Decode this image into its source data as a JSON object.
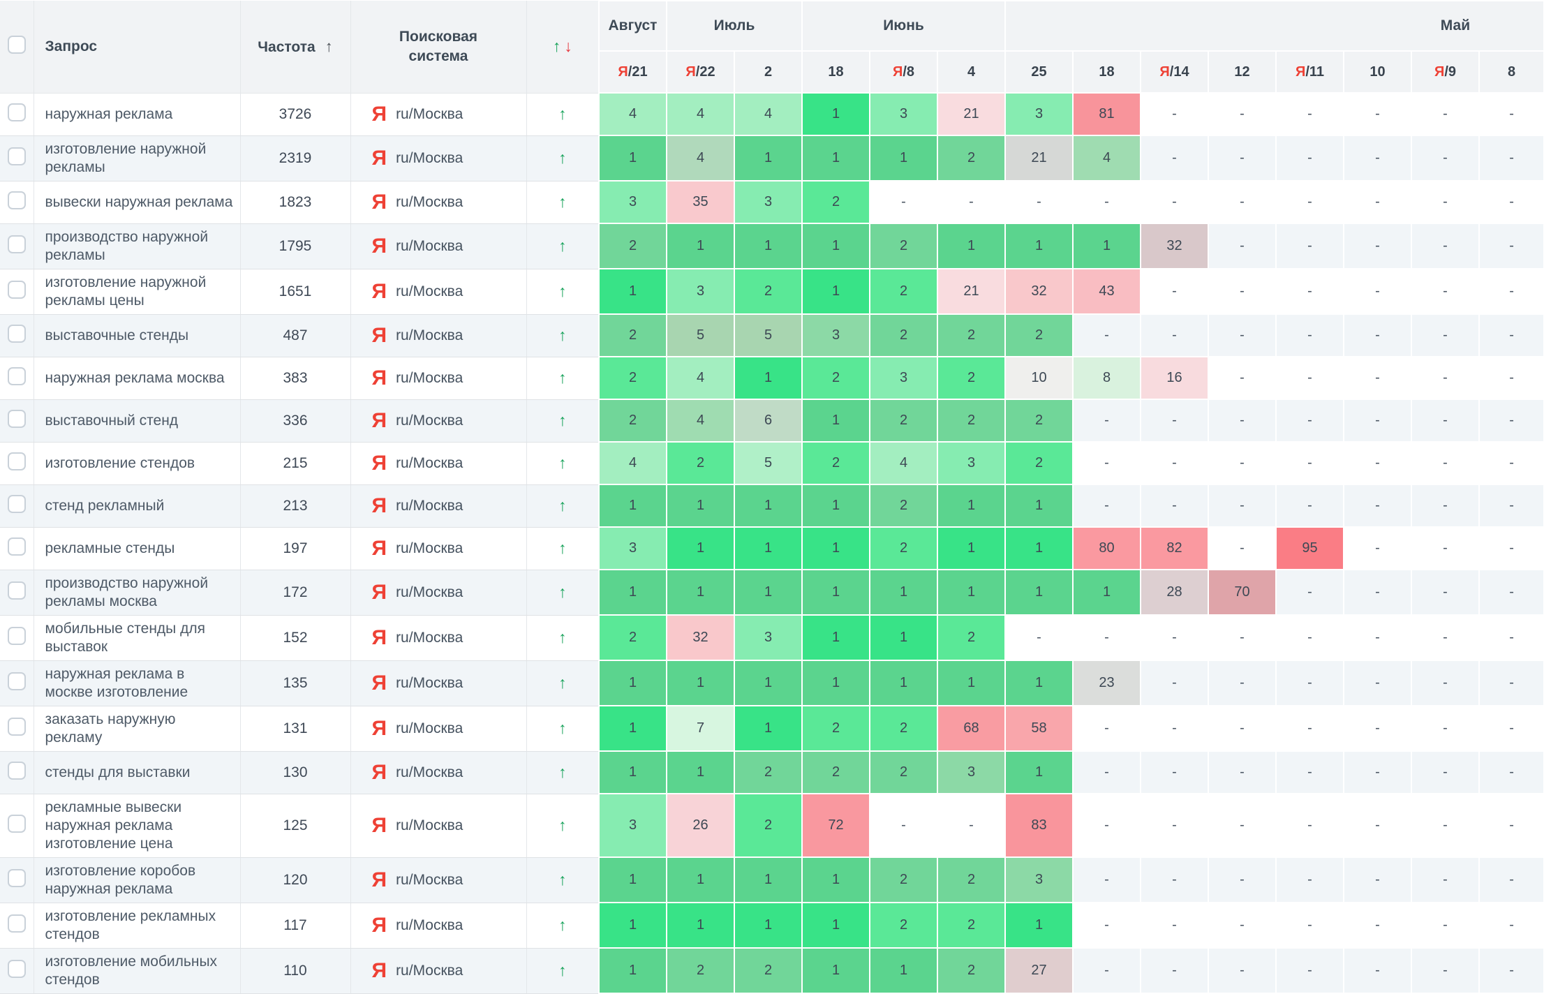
{
  "colors": {
    "yandex_red": "#ee4135",
    "trend_up_green": "#17a25a",
    "sort_down_red": "#e6393f",
    "header_bg": "#f1f3f5",
    "row_alt_bg": "#f1f5f8"
  },
  "palette": {
    "g1b": "#38e387",
    "g1m": "#5bd48e",
    "g2b": "#5ae897",
    "g2m": "#71d699",
    "g3b": "#86ecb1",
    "g3m": "#8cd9a6",
    "g4b": "#a3eec0",
    "g4m": "#9fdcb1",
    "g4g": "#b0d9bb",
    "g5b": "#b0f0c8",
    "g5m": "#a8d5b0",
    "g6m": "#c0dbc6",
    "g7b": "#d7f6e0",
    "g8b": "#d9f2de",
    "g10": "#efefed",
    "gy21": "#d6d8d6",
    "gy23": "#dbdddb",
    "gy27": "#e0cdce",
    "gy28": "#ddcfd1",
    "gy32": "#d9c8ca",
    "p16": "#f8dbde",
    "p21": "#f9dcdf",
    "p26": "#f8d3d7",
    "p32": "#f9c8cb",
    "p35": "#f9c9cd",
    "p43": "#f9bdc2",
    "r58": "#f9a6ab",
    "r68": "#f99ca2",
    "r70": "#dfa4a9",
    "r72": "#f9989f",
    "r80": "#fa99a0",
    "r81": "#f8949b",
    "r82": "#fa99a0",
    "r83": "#f9959c",
    "r95": "#fa7d85"
  },
  "header": {
    "query": "Запрос",
    "frequency": "Частота",
    "freq_sort_icon": "↑",
    "search_engine": "Поисковая\nсистема",
    "up_icon": "↑",
    "down_icon": "↓",
    "months": [
      {
        "label": "Август",
        "span": 1
      },
      {
        "label": "Июль",
        "span": 2
      },
      {
        "label": "Июнь",
        "span": 3
      },
      {
        "label": "Май",
        "span": 8
      }
    ],
    "dates": [
      {
        "ya": true,
        "day": "21"
      },
      {
        "ya": true,
        "day": "22"
      },
      {
        "ya": false,
        "day": "2"
      },
      {
        "ya": false,
        "day": "18"
      },
      {
        "ya": true,
        "day": "8"
      },
      {
        "ya": false,
        "day": "4"
      },
      {
        "ya": false,
        "day": "25"
      },
      {
        "ya": false,
        "day": "18"
      },
      {
        "ya": true,
        "day": "14"
      },
      {
        "ya": false,
        "day": "12"
      },
      {
        "ya": true,
        "day": "11"
      },
      {
        "ya": false,
        "day": "10"
      },
      {
        "ya": true,
        "day": "9"
      },
      {
        "ya": false,
        "day": "8"
      }
    ]
  },
  "engine": {
    "icon": "Я",
    "label": "ru/Москва"
  },
  "row_trend_icon": "↑",
  "rows": [
    {
      "query": "наружная реклама",
      "frequency": "3726",
      "cells": [
        [
          "4",
          "g4b"
        ],
        [
          "4",
          "g4b"
        ],
        [
          "4",
          "g4b"
        ],
        [
          "1",
          "g1b"
        ],
        [
          "3",
          "g3b"
        ],
        [
          "21",
          "p21"
        ],
        [
          "3",
          "g3b"
        ],
        [
          "81",
          "r81"
        ],
        [
          "-",
          ""
        ],
        [
          "-",
          ""
        ],
        [
          "-",
          ""
        ],
        [
          "-",
          ""
        ],
        [
          "-",
          ""
        ],
        [
          "-",
          ""
        ]
      ]
    },
    {
      "query": "изготовление наружной рекламы",
      "frequency": "2319",
      "cells": [
        [
          "1",
          "g1m"
        ],
        [
          "4",
          "g4g"
        ],
        [
          "1",
          "g1m"
        ],
        [
          "1",
          "g1m"
        ],
        [
          "1",
          "g1m"
        ],
        [
          "2",
          "g2m"
        ],
        [
          "21",
          "gy21"
        ],
        [
          "4",
          "g4m"
        ],
        [
          "-",
          ""
        ],
        [
          "-",
          ""
        ],
        [
          "-",
          ""
        ],
        [
          "-",
          ""
        ],
        [
          "-",
          ""
        ],
        [
          "-",
          ""
        ]
      ]
    },
    {
      "query": "вывески наружная реклама",
      "frequency": "1823",
      "cells": [
        [
          "3",
          "g3b"
        ],
        [
          "35",
          "p35"
        ],
        [
          "3",
          "g3b"
        ],
        [
          "2",
          "g2b"
        ],
        [
          "-",
          ""
        ],
        [
          "-",
          ""
        ],
        [
          "-",
          ""
        ],
        [
          "-",
          ""
        ],
        [
          "-",
          ""
        ],
        [
          "-",
          ""
        ],
        [
          "-",
          ""
        ],
        [
          "-",
          ""
        ],
        [
          "-",
          ""
        ],
        [
          "-",
          ""
        ]
      ]
    },
    {
      "query": "производство наружной рекламы",
      "frequency": "1795",
      "cells": [
        [
          "2",
          "g2m"
        ],
        [
          "1",
          "g1m"
        ],
        [
          "1",
          "g1m"
        ],
        [
          "1",
          "g1m"
        ],
        [
          "2",
          "g2m"
        ],
        [
          "1",
          "g1m"
        ],
        [
          "1",
          "g1m"
        ],
        [
          "1",
          "g1m"
        ],
        [
          "32",
          "gy32"
        ],
        [
          "-",
          ""
        ],
        [
          "-",
          ""
        ],
        [
          "-",
          ""
        ],
        [
          "-",
          ""
        ],
        [
          "-",
          ""
        ]
      ]
    },
    {
      "query": "изготовление наружной рекламы цены",
      "frequency": "1651",
      "cells": [
        [
          "1",
          "g1b"
        ],
        [
          "3",
          "g3b"
        ],
        [
          "2",
          "g2b"
        ],
        [
          "1",
          "g1b"
        ],
        [
          "2",
          "g2b"
        ],
        [
          "21",
          "p21"
        ],
        [
          "32",
          "p32"
        ],
        [
          "43",
          "p43"
        ],
        [
          "-",
          ""
        ],
        [
          "-",
          ""
        ],
        [
          "-",
          ""
        ],
        [
          "-",
          ""
        ],
        [
          "-",
          ""
        ],
        [
          "-",
          ""
        ]
      ]
    },
    {
      "query": "выставочные стенды",
      "frequency": "487",
      "cells": [
        [
          "2",
          "g2m"
        ],
        [
          "5",
          "g5m"
        ],
        [
          "5",
          "g5m"
        ],
        [
          "3",
          "g3m"
        ],
        [
          "2",
          "g2m"
        ],
        [
          "2",
          "g2m"
        ],
        [
          "2",
          "g2m"
        ],
        [
          "-",
          ""
        ],
        [
          "-",
          ""
        ],
        [
          "-",
          ""
        ],
        [
          "-",
          ""
        ],
        [
          "-",
          ""
        ],
        [
          "-",
          ""
        ],
        [
          "-",
          ""
        ]
      ]
    },
    {
      "query": "наружная реклама москва",
      "frequency": "383",
      "cells": [
        [
          "2",
          "g2b"
        ],
        [
          "4",
          "g4b"
        ],
        [
          "1",
          "g1b"
        ],
        [
          "2",
          "g2b"
        ],
        [
          "3",
          "g3b"
        ],
        [
          "2",
          "g2b"
        ],
        [
          "10",
          "g10"
        ],
        [
          "8",
          "g8b"
        ],
        [
          "16",
          "p16"
        ],
        [
          "-",
          ""
        ],
        [
          "-",
          ""
        ],
        [
          "-",
          ""
        ],
        [
          "-",
          ""
        ],
        [
          "-",
          ""
        ]
      ]
    },
    {
      "query": "выставочный стенд",
      "frequency": "336",
      "cells": [
        [
          "2",
          "g2m"
        ],
        [
          "4",
          "g4m"
        ],
        [
          "6",
          "g6m"
        ],
        [
          "1",
          "g1m"
        ],
        [
          "2",
          "g2m"
        ],
        [
          "2",
          "g2m"
        ],
        [
          "2",
          "g2m"
        ],
        [
          "-",
          ""
        ],
        [
          "-",
          ""
        ],
        [
          "-",
          ""
        ],
        [
          "-",
          ""
        ],
        [
          "-",
          ""
        ],
        [
          "-",
          ""
        ],
        [
          "-",
          ""
        ]
      ]
    },
    {
      "query": "изготовление стендов",
      "frequency": "215",
      "cells": [
        [
          "4",
          "g4b"
        ],
        [
          "2",
          "g2b"
        ],
        [
          "5",
          "g5b"
        ],
        [
          "2",
          "g2b"
        ],
        [
          "4",
          "g4b"
        ],
        [
          "3",
          "g3b"
        ],
        [
          "2",
          "g2b"
        ],
        [
          "-",
          ""
        ],
        [
          "-",
          ""
        ],
        [
          "-",
          ""
        ],
        [
          "-",
          ""
        ],
        [
          "-",
          ""
        ],
        [
          "-",
          ""
        ],
        [
          "-",
          ""
        ]
      ]
    },
    {
      "query": "стенд рекламный",
      "frequency": "213",
      "cells": [
        [
          "1",
          "g1m"
        ],
        [
          "1",
          "g1m"
        ],
        [
          "1",
          "g1m"
        ],
        [
          "1",
          "g1m"
        ],
        [
          "2",
          "g2m"
        ],
        [
          "1",
          "g1m"
        ],
        [
          "1",
          "g1m"
        ],
        [
          "-",
          ""
        ],
        [
          "-",
          ""
        ],
        [
          "-",
          ""
        ],
        [
          "-",
          ""
        ],
        [
          "-",
          ""
        ],
        [
          "-",
          ""
        ],
        [
          "-",
          ""
        ]
      ]
    },
    {
      "query": "рекламные стенды",
      "frequency": "197",
      "cells": [
        [
          "3",
          "g3b"
        ],
        [
          "1",
          "g1b"
        ],
        [
          "1",
          "g1b"
        ],
        [
          "1",
          "g1b"
        ],
        [
          "2",
          "g2b"
        ],
        [
          "1",
          "g1b"
        ],
        [
          "1",
          "g1b"
        ],
        [
          "80",
          "r80"
        ],
        [
          "82",
          "r82"
        ],
        [
          "-",
          ""
        ],
        [
          "95",
          "r95"
        ],
        [
          "-",
          ""
        ],
        [
          "-",
          ""
        ],
        [
          "-",
          ""
        ]
      ]
    },
    {
      "query": "производство наружной рекламы москва",
      "frequency": "172",
      "cells": [
        [
          "1",
          "g1m"
        ],
        [
          "1",
          "g1m"
        ],
        [
          "1",
          "g1m"
        ],
        [
          "1",
          "g1m"
        ],
        [
          "1",
          "g1m"
        ],
        [
          "1",
          "g1m"
        ],
        [
          "1",
          "g1m"
        ],
        [
          "1",
          "g1m"
        ],
        [
          "28",
          "gy28"
        ],
        [
          "70",
          "r70"
        ],
        [
          "-",
          ""
        ],
        [
          "-",
          ""
        ],
        [
          "-",
          ""
        ],
        [
          "-",
          ""
        ]
      ]
    },
    {
      "query": "мобильные стенды для выставок",
      "frequency": "152",
      "cells": [
        [
          "2",
          "g2b"
        ],
        [
          "32",
          "p32"
        ],
        [
          "3",
          "g3b"
        ],
        [
          "1",
          "g1b"
        ],
        [
          "1",
          "g1b"
        ],
        [
          "2",
          "g2b"
        ],
        [
          "-",
          ""
        ],
        [
          "-",
          ""
        ],
        [
          "-",
          ""
        ],
        [
          "-",
          ""
        ],
        [
          "-",
          ""
        ],
        [
          "-",
          ""
        ],
        [
          "-",
          ""
        ],
        [
          "-",
          ""
        ]
      ]
    },
    {
      "query": "наружная реклама в москве изготовление",
      "frequency": "135",
      "cells": [
        [
          "1",
          "g1m"
        ],
        [
          "1",
          "g1m"
        ],
        [
          "1",
          "g1m"
        ],
        [
          "1",
          "g1m"
        ],
        [
          "1",
          "g1m"
        ],
        [
          "1",
          "g1m"
        ],
        [
          "1",
          "g1m"
        ],
        [
          "23",
          "gy23"
        ],
        [
          "-",
          ""
        ],
        [
          "-",
          ""
        ],
        [
          "-",
          ""
        ],
        [
          "-",
          ""
        ],
        [
          "-",
          ""
        ],
        [
          "-",
          ""
        ]
      ]
    },
    {
      "query": "заказать наружную рекламу",
      "frequency": "131",
      "cells": [
        [
          "1",
          "g1b"
        ],
        [
          "7",
          "g7b"
        ],
        [
          "1",
          "g1b"
        ],
        [
          "2",
          "g2b"
        ],
        [
          "2",
          "g2b"
        ],
        [
          "68",
          "r68"
        ],
        [
          "58",
          "r58"
        ],
        [
          "-",
          ""
        ],
        [
          "-",
          ""
        ],
        [
          "-",
          ""
        ],
        [
          "-",
          ""
        ],
        [
          "-",
          ""
        ],
        [
          "-",
          ""
        ],
        [
          "-",
          ""
        ]
      ]
    },
    {
      "query": "стенды для выставки",
      "frequency": "130",
      "cells": [
        [
          "1",
          "g1m"
        ],
        [
          "1",
          "g1m"
        ],
        [
          "2",
          "g2m"
        ],
        [
          "2",
          "g2m"
        ],
        [
          "2",
          "g2m"
        ],
        [
          "3",
          "g3m"
        ],
        [
          "1",
          "g1m"
        ],
        [
          "-",
          ""
        ],
        [
          "-",
          ""
        ],
        [
          "-",
          ""
        ],
        [
          "-",
          ""
        ],
        [
          "-",
          ""
        ],
        [
          "-",
          ""
        ],
        [
          "-",
          ""
        ]
      ]
    },
    {
      "query": "рекламные вывески наружная реклама изготовление цена",
      "frequency": "125",
      "cells": [
        [
          "3",
          "g3b"
        ],
        [
          "26",
          "p26"
        ],
        [
          "2",
          "g2b"
        ],
        [
          "72",
          "r72"
        ],
        [
          "-",
          ""
        ],
        [
          "-",
          ""
        ],
        [
          "83",
          "r83"
        ],
        [
          "-",
          ""
        ],
        [
          "-",
          ""
        ],
        [
          "-",
          ""
        ],
        [
          "-",
          ""
        ],
        [
          "-",
          ""
        ],
        [
          "-",
          ""
        ],
        [
          "-",
          ""
        ]
      ]
    },
    {
      "query": "изготовление коробов наружная реклама",
      "frequency": "120",
      "cells": [
        [
          "1",
          "g1m"
        ],
        [
          "1",
          "g1m"
        ],
        [
          "1",
          "g1m"
        ],
        [
          "1",
          "g1m"
        ],
        [
          "2",
          "g2m"
        ],
        [
          "2",
          "g2m"
        ],
        [
          "3",
          "g3m"
        ],
        [
          "-",
          ""
        ],
        [
          "-",
          ""
        ],
        [
          "-",
          ""
        ],
        [
          "-",
          ""
        ],
        [
          "-",
          ""
        ],
        [
          "-",
          ""
        ],
        [
          "-",
          ""
        ]
      ]
    },
    {
      "query": "изготовление рекламных стендов",
      "frequency": "117",
      "cells": [
        [
          "1",
          "g1b"
        ],
        [
          "1",
          "g1b"
        ],
        [
          "1",
          "g1b"
        ],
        [
          "1",
          "g1b"
        ],
        [
          "2",
          "g2b"
        ],
        [
          "2",
          "g2b"
        ],
        [
          "1",
          "g1b"
        ],
        [
          "-",
          ""
        ],
        [
          "-",
          ""
        ],
        [
          "-",
          ""
        ],
        [
          "-",
          ""
        ],
        [
          "-",
          ""
        ],
        [
          "-",
          ""
        ],
        [
          "-",
          ""
        ]
      ]
    },
    {
      "query": "изготовление мобильных стендов",
      "frequency": "110",
      "cells": [
        [
          "1",
          "g1m"
        ],
        [
          "2",
          "g2m"
        ],
        [
          "2",
          "g2m"
        ],
        [
          "1",
          "g1m"
        ],
        [
          "1",
          "g1m"
        ],
        [
          "2",
          "g2m"
        ],
        [
          "27",
          "gy27"
        ],
        [
          "-",
          ""
        ],
        [
          "-",
          ""
        ],
        [
          "-",
          ""
        ],
        [
          "-",
          ""
        ],
        [
          "-",
          ""
        ],
        [
          "-",
          ""
        ],
        [
          "-",
          ""
        ]
      ]
    }
  ]
}
